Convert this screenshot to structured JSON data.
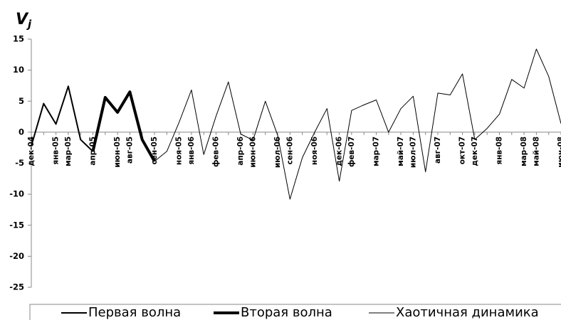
{
  "chart_data": {
    "type": "line",
    "y_label": "V",
    "y_label_sub": "j",
    "categories": [
      "дек-04",
      null,
      "янв-05",
      "мар-05",
      null,
      "апр-05",
      null,
      "июн-05",
      "авг-05",
      null,
      "сен-05",
      null,
      "ноя-05",
      "янв-06",
      null,
      "фев-06",
      null,
      "апр-06",
      "июн-06",
      null,
      "июл-06",
      "сен-06",
      null,
      "ноя-06",
      null,
      "дек-06",
      "фев-07",
      null,
      "мар-07",
      null,
      "май-07",
      "июл-07",
      null,
      "авг-07",
      null,
      "окт-07",
      "дек-07",
      null,
      "янв-08",
      null,
      "мар-08",
      "май-08",
      null,
      "июн-08"
    ],
    "series": [
      {
        "name": "Первая волна",
        "color": "#000000",
        "width": 2,
        "values": [
          -2.2,
          4.6,
          1.3,
          7.4,
          -1.2,
          -3.1,
          null,
          null,
          null,
          null,
          null,
          null,
          null,
          null,
          null,
          null,
          null,
          null,
          null,
          null,
          null,
          null,
          null,
          null,
          null,
          null,
          null,
          null,
          null,
          null,
          null,
          null,
          null,
          null,
          null,
          null,
          null,
          null,
          null,
          null,
          null,
          null,
          null,
          null
        ]
      },
      {
        "name": "Вторая волна",
        "color": "#000000",
        "width": 4,
        "values": [
          null,
          null,
          null,
          null,
          null,
          -3.1,
          5.6,
          3.2,
          6.5,
          -1.2,
          -4.7,
          null,
          null,
          null,
          null,
          null,
          null,
          null,
          null,
          null,
          null,
          null,
          null,
          null,
          null,
          null,
          null,
          null,
          null,
          null,
          null,
          null,
          null,
          null,
          null,
          null,
          null,
          null,
          null,
          null,
          null,
          null,
          null,
          null
        ]
      },
      {
        "name": "Хаотичная динамика",
        "color": "#000000",
        "width": 1,
        "values": [
          null,
          null,
          null,
          null,
          null,
          null,
          null,
          null,
          null,
          null,
          -4.7,
          -3.1,
          1.6,
          6.8,
          -3.6,
          2.6,
          8.1,
          -0.3,
          -1.3,
          5.0,
          -0.5,
          -10.8,
          -4.1,
          0,
          3.8,
          -7.9,
          3.5,
          4.4,
          5.2,
          0,
          3.8,
          5.8,
          -6.4,
          6.3,
          6.0,
          9.4,
          -1.2,
          0.6,
          2.9,
          8.5,
          7.1,
          13.4,
          9.0,
          1.4
        ]
      }
    ],
    "ylim": [
      -25,
      15
    ],
    "yticks": [
      -25,
      -20,
      -15,
      -10,
      -5,
      0,
      5,
      10,
      15
    ]
  }
}
